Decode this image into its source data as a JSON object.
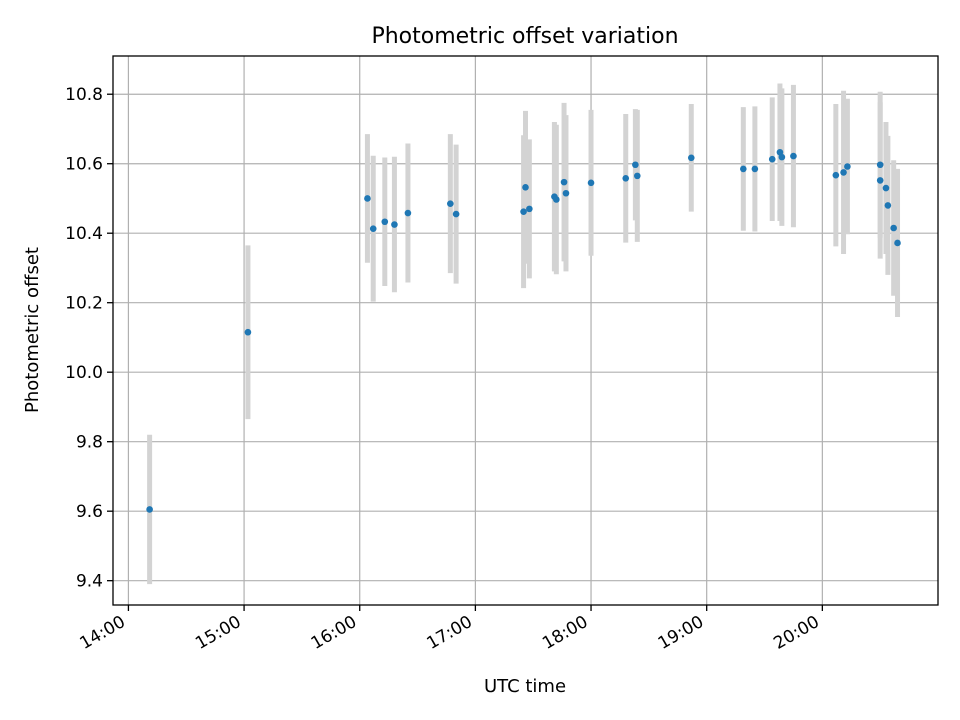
{
  "chart_data": {
    "type": "scatter",
    "title": "Photometric offset variation",
    "xlabel": "UTC time",
    "ylabel": "Photometric offset",
    "x_is_time": true,
    "xlim": [
      "13:52",
      "21:00"
    ],
    "ylim": [
      9.33,
      10.91
    ],
    "xticks": [
      "14:00",
      "15:00",
      "16:00",
      "17:00",
      "18:00",
      "19:00",
      "20:00"
    ],
    "yticks": [
      "9.4",
      "9.6",
      "9.8",
      "10.0",
      "10.2",
      "10.4",
      "10.6",
      "10.8"
    ],
    "grid": true,
    "marker_color": "#1f77b4",
    "errorbar_color": "#d3d3d3",
    "points": [
      {
        "x": "14:11",
        "y": 9.605,
        "err": 0.215
      },
      {
        "x": "15:02",
        "y": 10.115,
        "err": 0.25
      },
      {
        "x": "16:04",
        "y": 10.5,
        "err": 0.185
      },
      {
        "x": "16:07",
        "y": 10.413,
        "err": 0.21
      },
      {
        "x": "16:13",
        "y": 10.433,
        "err": 0.185
      },
      {
        "x": "16:18",
        "y": 10.425,
        "err": 0.195
      },
      {
        "x": "16:25",
        "y": 10.458,
        "err": 0.2
      },
      {
        "x": "16:47",
        "y": 10.485,
        "err": 0.2
      },
      {
        "x": "16:50",
        "y": 10.455,
        "err": 0.2
      },
      {
        "x": "17:25",
        "y": 10.462,
        "err": 0.22
      },
      {
        "x": "17:26",
        "y": 10.532,
        "err": 0.22
      },
      {
        "x": "17:28",
        "y": 10.47,
        "err": 0.2
      },
      {
        "x": "17:41",
        "y": 10.505,
        "err": 0.215
      },
      {
        "x": "17:42",
        "y": 10.497,
        "err": 0.215
      },
      {
        "x": "17:46",
        "y": 10.547,
        "err": 0.228
      },
      {
        "x": "17:47",
        "y": 10.515,
        "err": 0.225
      },
      {
        "x": "18:00",
        "y": 10.545,
        "err": 0.21
      },
      {
        "x": "18:18",
        "y": 10.558,
        "err": 0.185
      },
      {
        "x": "18:23",
        "y": 10.597,
        "err": 0.16
      },
      {
        "x": "18:24",
        "y": 10.565,
        "err": 0.19
      },
      {
        "x": "18:52",
        "y": 10.617,
        "err": 0.155
      },
      {
        "x": "19:19",
        "y": 10.585,
        "err": 0.178
      },
      {
        "x": "19:25",
        "y": 10.585,
        "err": 0.18
      },
      {
        "x": "19:34",
        "y": 10.613,
        "err": 0.178
      },
      {
        "x": "19:38",
        "y": 10.633,
        "err": 0.198
      },
      {
        "x": "19:39",
        "y": 10.619,
        "err": 0.198
      },
      {
        "x": "19:45",
        "y": 10.622,
        "err": 0.205
      },
      {
        "x": "20:07",
        "y": 10.567,
        "err": 0.205
      },
      {
        "x": "20:11",
        "y": 10.575,
        "err": 0.235
      },
      {
        "x": "20:13",
        "y": 10.592,
        "err": 0.195
      },
      {
        "x": "20:30",
        "y": 10.597,
        "err": 0.21
      },
      {
        "x": "20:30",
        "y": 10.552,
        "err": 0.225
      },
      {
        "x": "20:33",
        "y": 10.53,
        "err": 0.19
      },
      {
        "x": "20:34",
        "y": 10.48,
        "err": 0.2
      },
      {
        "x": "20:37",
        "y": 10.415,
        "err": 0.195
      },
      {
        "x": "20:39",
        "y": 10.372,
        "err": 0.213
      }
    ]
  }
}
